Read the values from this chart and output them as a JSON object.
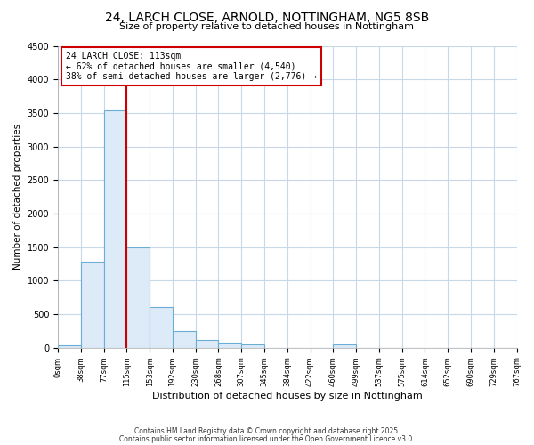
{
  "title_line1": "24, LARCH CLOSE, ARNOLD, NOTTINGHAM, NG5 8SB",
  "title_line2": "Size of property relative to detached houses in Nottingham",
  "xlabel": "Distribution of detached houses by size in Nottingham",
  "ylabel": "Number of detached properties",
  "bar_values": [
    30,
    1280,
    3540,
    1490,
    600,
    250,
    120,
    80,
    50,
    0,
    0,
    0,
    50,
    0,
    0,
    0,
    0,
    0,
    0,
    0
  ],
  "bin_labels": [
    "0sqm",
    "38sqm",
    "77sqm",
    "115sqm",
    "153sqm",
    "192sqm",
    "230sqm",
    "268sqm",
    "307sqm",
    "345sqm",
    "384sqm",
    "422sqm",
    "460sqm",
    "499sqm",
    "537sqm",
    "575sqm",
    "614sqm",
    "652sqm",
    "690sqm",
    "729sqm",
    "767sqm"
  ],
  "bar_color": "#ddeaf7",
  "bar_edge_color": "#6aaed6",
  "annotation_text_line1": "24 LARCH CLOSE: 113sqm",
  "annotation_text_line2": "← 62% of detached houses are smaller (4,540)",
  "annotation_text_line3": "38% of semi-detached houses are larger (2,776) →",
  "vline_bin": 3,
  "vline_color": "#cc0000",
  "annotation_box_color": "#ffffff",
  "annotation_box_edge": "#cc0000",
  "ylim": [
    0,
    4500
  ],
  "yticks": [
    0,
    500,
    1000,
    1500,
    2000,
    2500,
    3000,
    3500,
    4000,
    4500
  ],
  "footer_line1": "Contains HM Land Registry data © Crown copyright and database right 2025.",
  "footer_line2": "Contains public sector information licensed under the Open Government Licence v3.0.",
  "bg_color": "#ffffff",
  "plot_bg_color": "#ffffff",
  "grid_color": "#c8d8e8"
}
